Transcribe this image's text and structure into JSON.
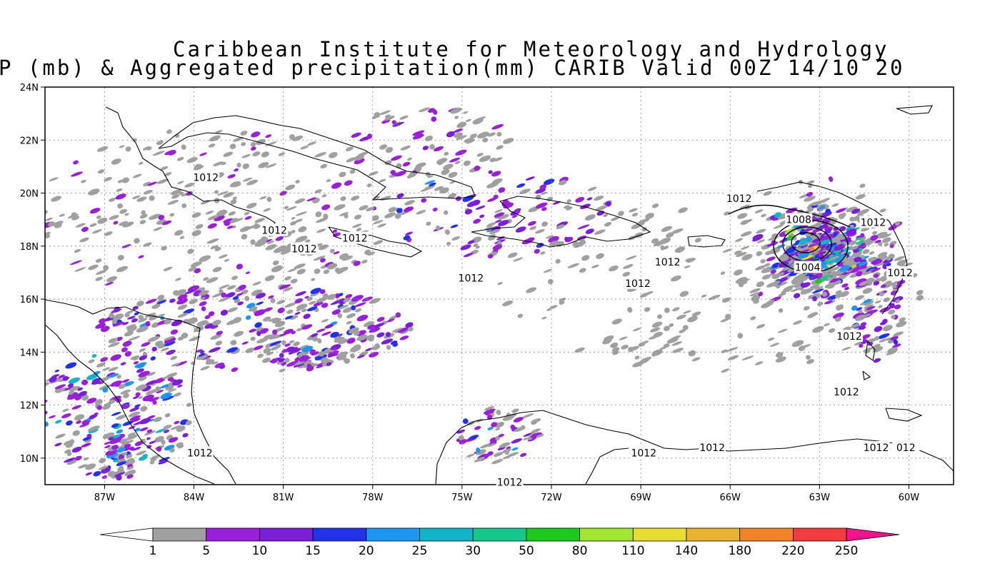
{
  "header": {
    "line1": "Caribbean Institute for Meteorology and Hydrology",
    "line2": "P (mb) & Aggregated precipitation(mm) CARIB Valid 00Z 14/10 20"
  },
  "map": {
    "lon_range": [
      -89,
      -58.5
    ],
    "lat_range": [
      9,
      24
    ],
    "lon_ticks": [
      {
        "v": -87,
        "label": "87W"
      },
      {
        "v": -84,
        "label": "84W"
      },
      {
        "v": -81,
        "label": "81W"
      },
      {
        "v": -78,
        "label": "78W"
      },
      {
        "v": -75,
        "label": "75W"
      },
      {
        "v": -72,
        "label": "72W"
      },
      {
        "v": -69,
        "label": "69W"
      },
      {
        "v": -66,
        "label": "66W"
      },
      {
        "v": -63,
        "label": "63W"
      },
      {
        "v": -60,
        "label": "60W"
      }
    ],
    "lat_ticks": [
      {
        "v": 10,
        "label": "10N"
      },
      {
        "v": 12,
        "label": "12N"
      },
      {
        "v": 14,
        "label": "14N"
      },
      {
        "v": 16,
        "label": "16N"
      },
      {
        "v": 18,
        "label": "18N"
      },
      {
        "v": 20,
        "label": "20N"
      },
      {
        "v": 22,
        "label": "22N"
      },
      {
        "v": 24,
        "label": "24N"
      }
    ],
    "isobar_labels": [
      {
        "lon": -83.6,
        "lat": 20.6,
        "text": "1012"
      },
      {
        "lon": -81.3,
        "lat": 18.6,
        "text": "1012"
      },
      {
        "lon": -80.3,
        "lat": 17.9,
        "text": "1012"
      },
      {
        "lon": -78.6,
        "lat": 18.3,
        "text": "1012"
      },
      {
        "lon": -74.7,
        "lat": 16.8,
        "text": "1012"
      },
      {
        "lon": -68.1,
        "lat": 17.4,
        "text": "1012"
      },
      {
        "lon": -69.1,
        "lat": 16.6,
        "text": "1012"
      },
      {
        "lon": -65.7,
        "lat": 19.8,
        "text": "1012"
      },
      {
        "lon": -63.7,
        "lat": 19.0,
        "text": "1008"
      },
      {
        "lon": -63.4,
        "lat": 17.2,
        "text": "1004"
      },
      {
        "lon": -61.2,
        "lat": 18.9,
        "text": "1012"
      },
      {
        "lon": -60.3,
        "lat": 17.0,
        "text": "1012"
      },
      {
        "lon": -62.0,
        "lat": 14.6,
        "text": "1012"
      },
      {
        "lon": -62.1,
        "lat": 12.5,
        "text": "1012"
      },
      {
        "lon": -83.8,
        "lat": 10.2,
        "text": "1012"
      },
      {
        "lon": -68.9,
        "lat": 10.2,
        "text": "1012"
      },
      {
        "lon": -66.6,
        "lat": 10.4,
        "text": "1012"
      },
      {
        "lon": -73.4,
        "lat": 9.1,
        "text": "1012"
      },
      {
        "lon": -61.1,
        "lat": 10.4,
        "text": "1012"
      },
      {
        "lon": -60.1,
        "lat": 10.4,
        "text": "012"
      }
    ]
  },
  "colorbar": {
    "labels": [
      "1",
      "5",
      "10",
      "15",
      "20",
      "25",
      "30",
      "50",
      "80",
      "110",
      "140",
      "180",
      "220",
      "250"
    ],
    "colors": [
      "#a0a0a0",
      "#9a1fd8",
      "#7b1ed8",
      "#2232e8",
      "#1e96f0",
      "#14b4c8",
      "#14c88c",
      "#1ec81e",
      "#a0e632",
      "#e6dc32",
      "#e6b432",
      "#f08228",
      "#f03c3c",
      "#f0148c"
    ]
  }
}
